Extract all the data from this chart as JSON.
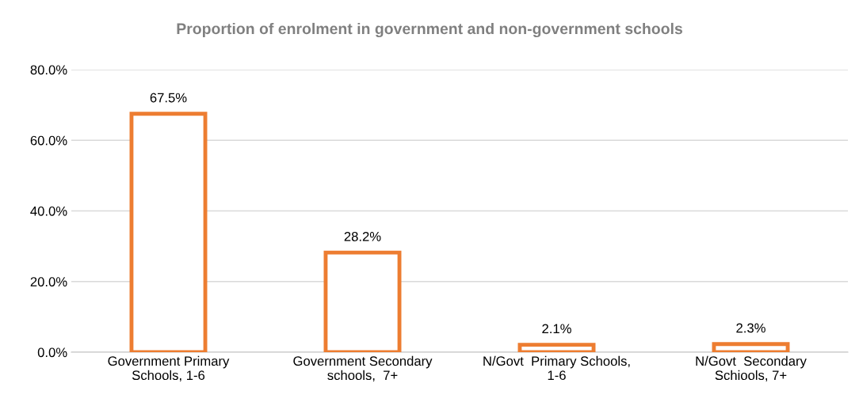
{
  "chart_data": {
    "type": "bar",
    "title": "Proportion of enrolment in government and non-government schools",
    "categories": [
      "Government Primary\nSchools, 1-6",
      "Government Secondary\nschools,  7+",
      "N/Govt  Primary Schools,\n1-6",
      "N/Govt  Secondary\nSchiools, 7+"
    ],
    "values": [
      67.5,
      28.2,
      2.1,
      2.3
    ],
    "value_labels": [
      "67.5%",
      "28.2%",
      "2.1%",
      "2.3%"
    ],
    "color": "#ed7d31",
    "ylim": [
      0,
      80
    ],
    "yticks": [
      {
        "value": 0,
        "label": "0.0%"
      },
      {
        "value": 20,
        "label": "20.0%"
      },
      {
        "value": 40,
        "label": "40.0%"
      },
      {
        "value": 60,
        "label": "60.0%"
      },
      {
        "value": 80,
        "label": "80.0%"
      }
    ],
    "grid": "y",
    "legend": false
  }
}
